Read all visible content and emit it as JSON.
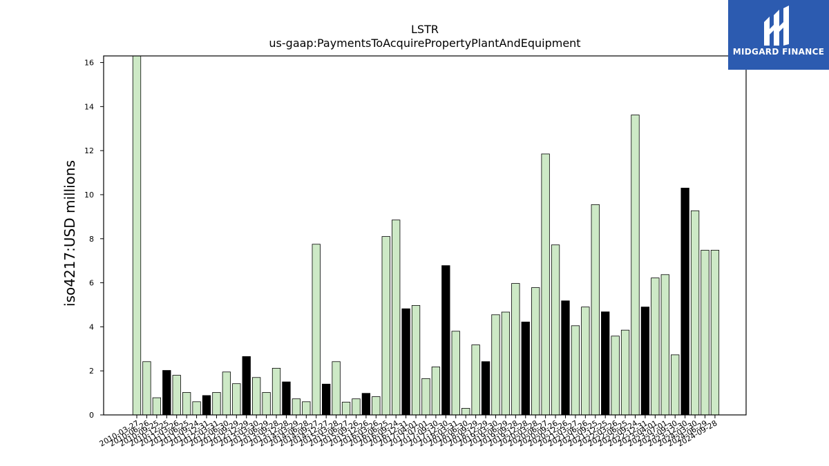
{
  "chart_data": {
    "type": "bar",
    "title": "LSTR",
    "subtitle": "us-gaap:PaymentsToAcquirePropertyPlantAndEquipment",
    "ylabel": "iso4217:USD  millions",
    "xlabel": "",
    "ylim": [
      0,
      16.3
    ],
    "yticks": [
      0,
      2,
      4,
      6,
      8,
      10,
      12,
      14,
      16
    ],
    "categories": [
      "2010-03-27",
      "2010-06-26",
      "2010-09-25",
      "2010-12-25",
      "2011-03-26",
      "2011-06-25",
      "2011-09-24",
      "2011-12-31",
      "2012-03-31",
      "2012-06-30",
      "2012-09-29",
      "2012-12-29",
      "2013-03-30",
      "2013-06-29",
      "2013-09-28",
      "2013-12-28",
      "2014-03-29",
      "2014-06-28",
      "2014-09-27",
      "2014-12-27",
      "2015-03-28",
      "2015-06-27",
      "2015-09-26",
      "2015-12-26",
      "2016-03-26",
      "2016-06-25",
      "2016-09-24",
      "2016-12-31",
      "2017-04-01",
      "2017-07-01",
      "2017-09-30",
      "2017-12-30",
      "2018-03-31",
      "2018-06-30",
      "2018-09-29",
      "2018-12-29",
      "2019-03-30",
      "2019-06-29",
      "2019-09-28",
      "2019-12-28",
      "2020-03-28",
      "2020-06-27",
      "2020-09-26",
      "2020-12-26",
      "2021-03-27",
      "2021-06-26",
      "2021-09-25",
      "2021-12-25",
      "2022-03-26",
      "2022-06-25",
      "2022-09-24",
      "2022-12-31",
      "2023-04-01",
      "2023-07-01",
      "2023-09-30",
      "2023-12-30",
      "2024-03-30",
      "2024-06-29",
      "2024-09-28"
    ],
    "values": [
      16.3,
      2.42,
      0.78,
      2.02,
      1.8,
      1.02,
      0.6,
      0.88,
      1.02,
      1.95,
      1.42,
      2.65,
      1.7,
      1.02,
      2.12,
      1.5,
      0.73,
      0.6,
      7.75,
      1.4,
      2.42,
      0.58,
      0.73,
      0.98,
      0.83,
      8.1,
      8.85,
      4.82,
      4.97,
      1.65,
      2.18,
      6.78,
      3.8,
      0.3,
      3.18,
      2.42,
      4.55,
      4.67,
      5.97,
      4.22,
      5.78,
      11.85,
      7.72,
      5.18,
      4.05,
      4.9,
      9.55,
      4.68,
      3.58,
      3.85,
      13.62,
      4.9,
      6.22,
      6.37,
      2.73,
      10.3,
      9.27,
      7.48,
      7.48
    ],
    "highlight_color": "#000000",
    "bar_color": "#cde9c6",
    "edge_color": "#000000"
  },
  "brand": {
    "name": "MIDGARD FINANCE",
    "color": "#2c5bb0"
  }
}
